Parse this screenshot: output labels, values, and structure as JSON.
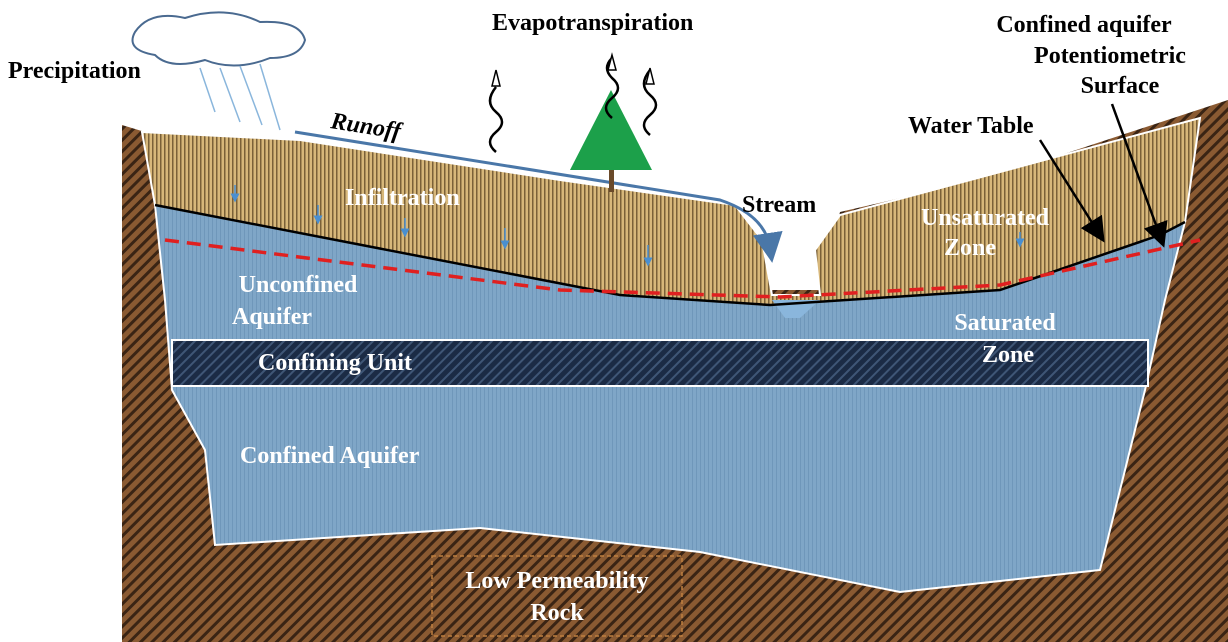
{
  "labels": {
    "precipitation": "Precipitation",
    "evapotranspiration": "Evapotranspiration",
    "runoff": "Runoff",
    "infiltration": "Infiltration",
    "stream": "Stream",
    "potentiometric_surface": [
      "Confined aquifer",
      "Potentiometric",
      "Surface"
    ],
    "water_table": "Water Table",
    "unsaturated_zone": [
      "Unsaturated",
      "Zone"
    ],
    "unconfined_aquifer": [
      "Unconfined",
      "Aquifer"
    ],
    "saturated_zone": [
      "Saturated",
      "Zone"
    ],
    "confining_unit": "Confining Unit",
    "confined_aquifer": "Confined Aquifer",
    "low_permeability_rock": [
      "Low Permeability",
      "Rock"
    ]
  }
}
